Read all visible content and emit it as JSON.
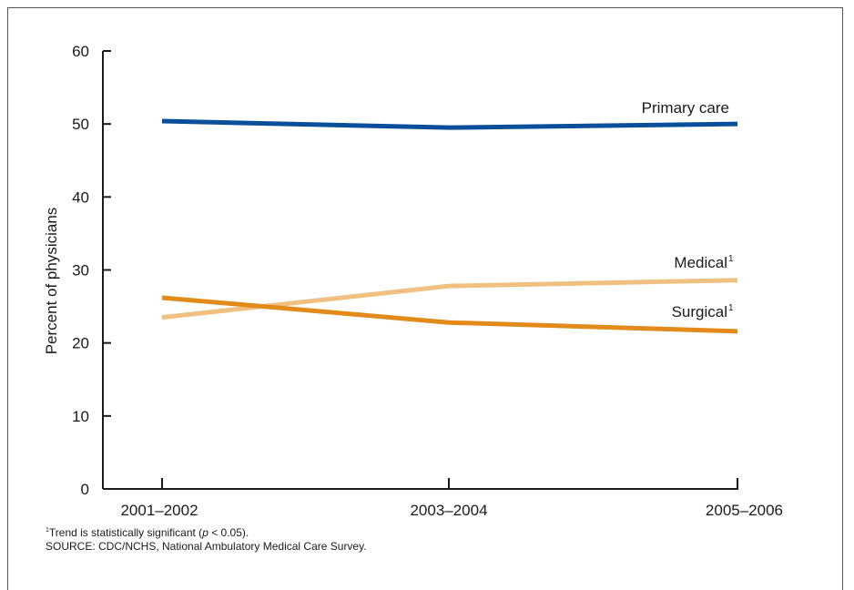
{
  "chart_data": {
    "type": "line",
    "title": "",
    "xlabel": "",
    "ylabel": "Percent of physicians",
    "ylim": [
      0,
      60
    ],
    "yticks": [
      0,
      10,
      20,
      30,
      40,
      50,
      60
    ],
    "categories": [
      "2001–2002",
      "2003–2004",
      "2005–2006"
    ],
    "grid": false,
    "legend": "inline labels at line ends",
    "series": [
      {
        "name": "Primary care",
        "marker": "",
        "values": [
          50.4,
          49.5,
          50.0
        ],
        "color": "#0b4f9a"
      },
      {
        "name": "Medical",
        "marker": "1",
        "values": [
          23.5,
          27.8,
          28.6
        ],
        "color": "#f0c080"
      },
      {
        "name": "Surgical",
        "marker": "1",
        "values": [
          26.2,
          22.8,
          21.6
        ],
        "color": "#e28a1a"
      }
    ]
  },
  "footnotes": {
    "trend_marker": "1",
    "trend_text_before": "Trend is statistically significant (",
    "trend_p": "p",
    "trend_text_after": " < 0.05).",
    "source": "SOURCE: CDC/NCHS, National Ambulatory Medical Care Survey."
  }
}
